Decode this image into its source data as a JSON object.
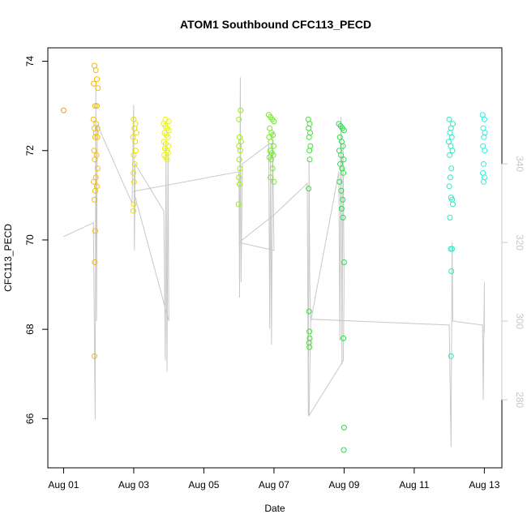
{
  "chart_data": {
    "type": "scatter",
    "title": "ATOM1 Southbound CFC113_PECD",
    "xlabel": "Date",
    "ylabel": "CFC113_PECD",
    "x_tick_labels": [
      "Aug 01",
      "Aug 03",
      "Aug 05",
      "Aug 07",
      "Aug 09",
      "Aug 11",
      "Aug 13"
    ],
    "x_tick_days": [
      1,
      3,
      5,
      7,
      9,
      11,
      13
    ],
    "xlim": [
      0.55,
      13.5
    ],
    "ylim": [
      64.9,
      74.3
    ],
    "y_ticks": [
      66,
      68,
      70,
      72,
      74
    ],
    "y_tick_labels": [
      "66",
      "68",
      "70",
      "72",
      "74"
    ],
    "right_axis": {
      "ylim": [
        262.7,
        369.5
      ],
      "ticks": [
        280,
        300,
        320,
        340
      ],
      "tick_labels": [
        "280",
        "300",
        "320",
        "340"
      ],
      "color": "#c8c8c8"
    },
    "series_color_ramp": [
      "#f39a1f",
      "#f0d000",
      "#e6f500",
      "#b8f000",
      "#6fe82a",
      "#22dd33",
      "#22e27a",
      "#22e9b6",
      "#2aeedc"
    ],
    "points": [
      {
        "x": 1.0,
        "y": 72.9
      },
      {
        "x": 1.88,
        "y": 73.9
      },
      {
        "x": 1.92,
        "y": 73.8
      },
      {
        "x": 1.95,
        "y": 73.6
      },
      {
        "x": 1.86,
        "y": 73.5
      },
      {
        "x": 1.98,
        "y": 73.4
      },
      {
        "x": 1.9,
        "y": 73.0
      },
      {
        "x": 1.95,
        "y": 73.0
      },
      {
        "x": 1.85,
        "y": 72.7
      },
      {
        "x": 1.93,
        "y": 72.6
      },
      {
        "x": 1.97,
        "y": 72.5
      },
      {
        "x": 1.88,
        "y": 72.5
      },
      {
        "x": 1.92,
        "y": 72.4
      },
      {
        "x": 1.9,
        "y": 72.3
      },
      {
        "x": 1.96,
        "y": 72.3
      },
      {
        "x": 1.87,
        "y": 72.0
      },
      {
        "x": 1.94,
        "y": 71.9
      },
      {
        "x": 1.89,
        "y": 71.8
      },
      {
        "x": 1.97,
        "y": 71.6
      },
      {
        "x": 1.92,
        "y": 71.4
      },
      {
        "x": 1.86,
        "y": 71.3
      },
      {
        "x": 1.95,
        "y": 71.2
      },
      {
        "x": 1.9,
        "y": 71.1
      },
      {
        "x": 1.88,
        "y": 70.9
      },
      {
        "x": 1.9,
        "y": 70.2
      },
      {
        "x": 1.89,
        "y": 69.5
      },
      {
        "x": 1.88,
        "y": 67.4
      },
      {
        "x": 3.0,
        "y": 72.7
      },
      {
        "x": 3.05,
        "y": 72.6
      },
      {
        "x": 3.02,
        "y": 72.5
      },
      {
        "x": 3.08,
        "y": 72.4
      },
      {
        "x": 2.98,
        "y": 72.3
      },
      {
        "x": 3.04,
        "y": 72.2
      },
      {
        "x": 3.06,
        "y": 72.0
      },
      {
        "x": 3.0,
        "y": 71.9
      },
      {
        "x": 3.03,
        "y": 71.7
      },
      {
        "x": 2.99,
        "y": 71.5
      },
      {
        "x": 3.01,
        "y": 71.3
      },
      {
        "x": 3.0,
        "y": 70.8
      },
      {
        "x": 2.99,
        "y": 70.65
      },
      {
        "x": 3.85,
        "y": 72.6
      },
      {
        "x": 3.9,
        "y": 72.55
      },
      {
        "x": 3.95,
        "y": 72.5
      },
      {
        "x": 4.0,
        "y": 72.45
      },
      {
        "x": 3.88,
        "y": 72.4
      },
      {
        "x": 3.93,
        "y": 72.35
      },
      {
        "x": 3.97,
        "y": 72.3
      },
      {
        "x": 3.86,
        "y": 72.2
      },
      {
        "x": 3.91,
        "y": 72.15
      },
      {
        "x": 3.99,
        "y": 72.1
      },
      {
        "x": 3.89,
        "y": 72.05
      },
      {
        "x": 3.94,
        "y": 72.0
      },
      {
        "x": 3.98,
        "y": 71.95
      },
      {
        "x": 3.87,
        "y": 71.9
      },
      {
        "x": 3.92,
        "y": 71.85
      },
      {
        "x": 3.96,
        "y": 71.8
      },
      {
        "x": 3.9,
        "y": 72.7
      },
      {
        "x": 4.0,
        "y": 72.65
      },
      {
        "x": 6.0,
        "y": 72.7
      },
      {
        "x": 6.05,
        "y": 72.9
      },
      {
        "x": 6.02,
        "y": 72.3
      },
      {
        "x": 6.06,
        "y": 72.2
      },
      {
        "x": 6.0,
        "y": 72.1
      },
      {
        "x": 6.04,
        "y": 72.0
      },
      {
        "x": 6.01,
        "y": 71.8
      },
      {
        "x": 6.03,
        "y": 71.6
      },
      {
        "x": 6.0,
        "y": 71.4
      },
      {
        "x": 6.02,
        "y": 71.25
      },
      {
        "x": 5.99,
        "y": 70.8
      },
      {
        "x": 6.85,
        "y": 72.8
      },
      {
        "x": 6.9,
        "y": 72.75
      },
      {
        "x": 6.95,
        "y": 72.7
      },
      {
        "x": 7.0,
        "y": 72.65
      },
      {
        "x": 6.88,
        "y": 72.5
      },
      {
        "x": 6.93,
        "y": 72.4
      },
      {
        "x": 6.97,
        "y": 72.35
      },
      {
        "x": 6.86,
        "y": 72.3
      },
      {
        "x": 6.91,
        "y": 72.2
      },
      {
        "x": 6.99,
        "y": 72.1
      },
      {
        "x": 6.89,
        "y": 72.0
      },
      {
        "x": 6.94,
        "y": 71.95
      },
      {
        "x": 6.98,
        "y": 71.9
      },
      {
        "x": 6.87,
        "y": 71.85
      },
      {
        "x": 6.92,
        "y": 71.8
      },
      {
        "x": 6.96,
        "y": 71.6
      },
      {
        "x": 6.9,
        "y": 71.4
      },
      {
        "x": 7.0,
        "y": 71.3
      },
      {
        "x": 7.98,
        "y": 72.7
      },
      {
        "x": 8.02,
        "y": 72.6
      },
      {
        "x": 7.99,
        "y": 72.5
      },
      {
        "x": 8.03,
        "y": 72.4
      },
      {
        "x": 8.0,
        "y": 72.3
      },
      {
        "x": 8.04,
        "y": 72.1
      },
      {
        "x": 8.01,
        "y": 72.0
      },
      {
        "x": 8.02,
        "y": 71.8
      },
      {
        "x": 7.99,
        "y": 71.15
      },
      {
        "x": 8.0,
        "y": 68.4
      },
      {
        "x": 8.01,
        "y": 67.95
      },
      {
        "x": 8.02,
        "y": 67.8
      },
      {
        "x": 8.0,
        "y": 67.7
      },
      {
        "x": 8.01,
        "y": 67.6
      },
      {
        "x": 8.85,
        "y": 72.6
      },
      {
        "x": 8.9,
        "y": 72.55
      },
      {
        "x": 8.95,
        "y": 72.5
      },
      {
        "x": 9.0,
        "y": 72.45
      },
      {
        "x": 8.88,
        "y": 72.3
      },
      {
        "x": 8.93,
        "y": 72.2
      },
      {
        "x": 8.97,
        "y": 72.1
      },
      {
        "x": 8.86,
        "y": 72.0
      },
      {
        "x": 8.91,
        "y": 71.9
      },
      {
        "x": 8.99,
        "y": 71.8
      },
      {
        "x": 8.89,
        "y": 71.7
      },
      {
        "x": 8.94,
        "y": 71.6
      },
      {
        "x": 8.98,
        "y": 71.5
      },
      {
        "x": 8.87,
        "y": 71.3
      },
      {
        "x": 8.92,
        "y": 71.1
      },
      {
        "x": 8.96,
        "y": 70.9
      },
      {
        "x": 8.93,
        "y": 70.7
      },
      {
        "x": 8.97,
        "y": 70.5
      },
      {
        "x": 9.0,
        "y": 69.5
      },
      {
        "x": 8.98,
        "y": 67.8
      },
      {
        "x": 9.0,
        "y": 65.8
      },
      {
        "x": 8.99,
        "y": 65.3
      },
      {
        "x": 12.0,
        "y": 72.7
      },
      {
        "x": 12.05,
        "y": 72.5
      },
      {
        "x": 12.1,
        "y": 72.6
      },
      {
        "x": 12.02,
        "y": 72.4
      },
      {
        "x": 12.07,
        "y": 72.3
      },
      {
        "x": 11.98,
        "y": 72.2
      },
      {
        "x": 12.04,
        "y": 72.1
      },
      {
        "x": 12.09,
        "y": 72.0
      },
      {
        "x": 12.01,
        "y": 71.9
      },
      {
        "x": 12.06,
        "y": 71.6
      },
      {
        "x": 12.03,
        "y": 71.4
      },
      {
        "x": 12.0,
        "y": 71.2
      },
      {
        "x": 12.05,
        "y": 70.95
      },
      {
        "x": 12.08,
        "y": 70.9
      },
      {
        "x": 12.1,
        "y": 70.8
      },
      {
        "x": 12.02,
        "y": 70.5
      },
      {
        "x": 12.04,
        "y": 69.8
      },
      {
        "x": 12.08,
        "y": 69.8
      },
      {
        "x": 12.06,
        "y": 69.3
      },
      {
        "x": 12.05,
        "y": 67.4
      },
      {
        "x": 12.95,
        "y": 72.8
      },
      {
        "x": 13.0,
        "y": 72.7
      },
      {
        "x": 12.97,
        "y": 72.5
      },
      {
        "x": 13.02,
        "y": 72.4
      },
      {
        "x": 12.99,
        "y": 72.3
      },
      {
        "x": 12.96,
        "y": 72.1
      },
      {
        "x": 13.01,
        "y": 72.0
      },
      {
        "x": 12.98,
        "y": 71.7
      },
      {
        "x": 12.96,
        "y": 71.5
      },
      {
        "x": 13.0,
        "y": 71.4
      },
      {
        "x": 12.98,
        "y": 71.3
      }
    ],
    "right_line": {
      "color": "#c8c8c8",
      "points": [
        [
          1.0,
          321.5
        ],
        [
          1.85,
          325.0
        ],
        [
          1.9,
          275.0
        ],
        [
          1.92,
          360.0
        ],
        [
          1.94,
          300.0
        ],
        [
          1.96,
          350.0
        ],
        [
          2.95,
          330.0
        ],
        [
          3.0,
          355.0
        ],
        [
          3.02,
          318.0
        ],
        [
          3.04,
          340.0
        ],
        [
          3.86,
          328.0
        ],
        [
          3.9,
          290.0
        ],
        [
          3.92,
          345.0
        ],
        [
          3.95,
          287.0
        ],
        [
          3.98,
          343.0
        ],
        [
          4.0,
          300.0
        ],
        [
          3.0,
          333.0
        ],
        [
          6.0,
          338.0
        ],
        [
          6.02,
          306.0
        ],
        [
          6.04,
          362.0
        ],
        [
          6.06,
          310.0
        ],
        [
          6.1,
          340.0
        ],
        [
          6.85,
          345.0
        ],
        [
          6.88,
          298.0
        ],
        [
          6.9,
          342.0
        ],
        [
          6.93,
          294.0
        ],
        [
          6.96,
          348.0
        ],
        [
          7.0,
          318.0
        ],
        [
          6.0,
          320.0
        ],
        [
          7.0,
          327.0
        ],
        [
          7.95,
          335.0
        ],
        [
          7.98,
          276.0
        ],
        [
          8.0,
          341.0
        ],
        [
          8.02,
          310.0
        ],
        [
          8.05,
          300.0
        ],
        [
          8.85,
          338.0
        ],
        [
          8.88,
          295.0
        ],
        [
          8.91,
          352.0
        ],
        [
          8.94,
          289.0
        ],
        [
          8.97,
          345.0
        ],
        [
          9.0,
          310.0
        ],
        [
          8.98,
          290.0
        ],
        [
          8.0,
          276.0
        ],
        [
          8.05,
          300.5
        ],
        [
          12.0,
          299.0
        ],
        [
          12.05,
          268.0
        ],
        [
          12.08,
          320.0
        ],
        [
          12.1,
          300.0
        ],
        [
          12.95,
          299.0
        ],
        [
          12.97,
          280.0
        ],
        [
          13.0,
          310.0
        ],
        [
          13.0,
          297.0
        ]
      ]
    }
  }
}
